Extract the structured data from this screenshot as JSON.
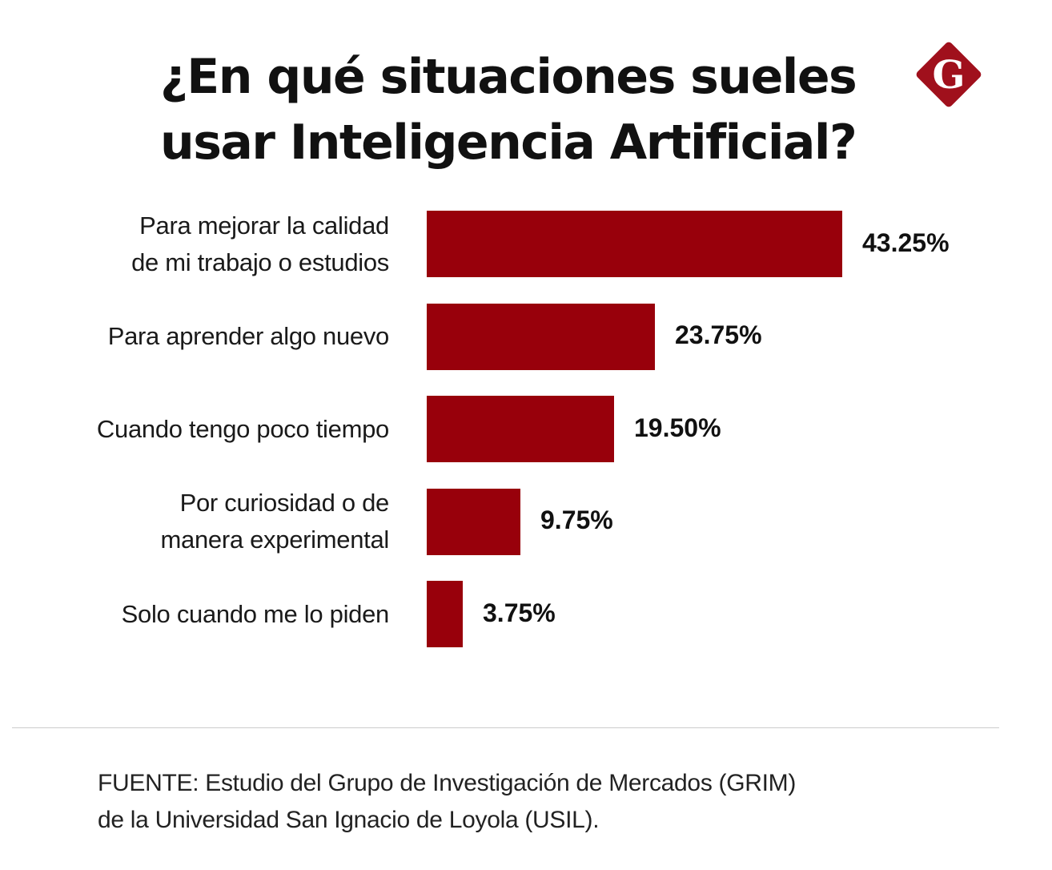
{
  "title_line1": "¿En qué situaciones sueles",
  "title_line2": "usar Inteligencia Artificial?",
  "logo": {
    "letter": "G",
    "color": "#a0101c"
  },
  "chart_data": {
    "type": "bar",
    "orientation": "horizontal",
    "categories": [
      [
        "Para mejorar la calidad",
        "de mi trabajo o estudios"
      ],
      [
        "Para aprender algo nuevo"
      ],
      [
        "Cuando tengo poco tiempo"
      ],
      [
        "Por curiosidad o de",
        "manera experimental"
      ],
      [
        "Solo cuando me lo piden"
      ]
    ],
    "values": [
      43.25,
      23.75,
      19.5,
      9.75,
      3.75
    ],
    "labels": [
      "43.25%",
      "23.75%",
      "19.50%",
      "9.75%",
      "3.75%"
    ],
    "bar_color": "#98000b",
    "grid": false
  },
  "source_line1": "FUENTE: Estudio del Grupo de Investigación de Mercados (GRIM)",
  "source_line2": "de la Universidad San Ignacio de Loyola (USIL)."
}
